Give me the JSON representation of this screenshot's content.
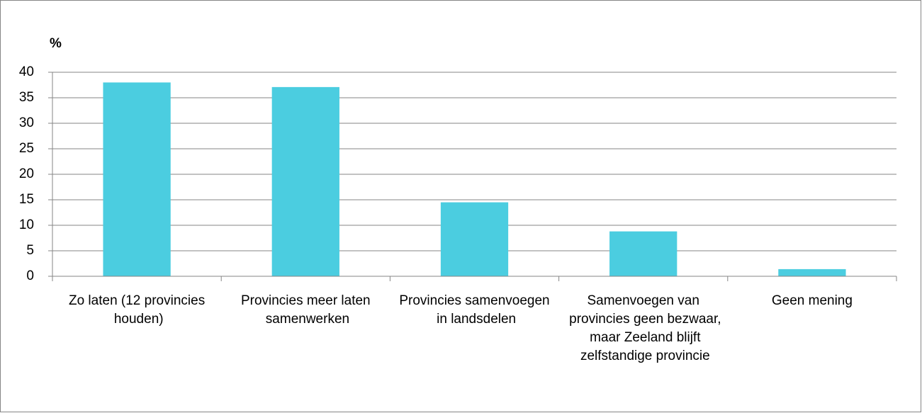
{
  "chart_data": {
    "type": "bar",
    "y_label": "%",
    "categories": [
      "Zo laten (12 provincies houden)",
      "Provincies meer laten samenwerken",
      "Provincies samenvoegen in landsdelen",
      "Samenvoegen van provincies geen bezwaar, maar Zeeland blijft zelfstandige provincie",
      "Geen mening"
    ],
    "values": [
      38,
      37.1,
      14.5,
      8.8,
      1.4
    ],
    "color": "#4bcde0",
    "ylim": [
      0,
      40
    ],
    "yticks": [
      0,
      5,
      10,
      15,
      20,
      25,
      30,
      35,
      40
    ],
    "grid": true
  }
}
